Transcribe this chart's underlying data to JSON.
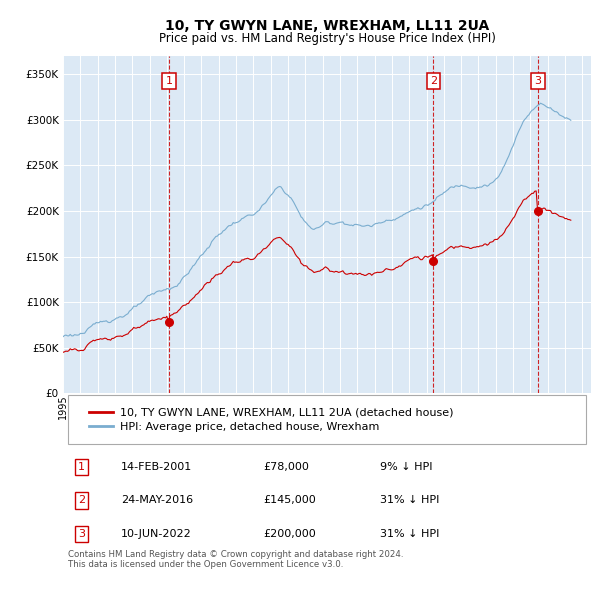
{
  "title": "10, TY GWYN LANE, WREXHAM, LL11 2UA",
  "subtitle": "Price paid vs. HM Land Registry's House Price Index (HPI)",
  "xlim_start": 1995.0,
  "xlim_end": 2025.5,
  "ylim": [
    0,
    370000
  ],
  "yticks": [
    0,
    50000,
    100000,
    150000,
    200000,
    250000,
    300000,
    350000
  ],
  "ytick_labels": [
    "£0",
    "£50K",
    "£100K",
    "£150K",
    "£200K",
    "£250K",
    "£300K",
    "£350K"
  ],
  "plot_bg_color": "#dce9f5",
  "grid_color": "#ffffff",
  "sale_color": "#cc0000",
  "hpi_color": "#7aadcf",
  "purchases": [
    {
      "date_num": 2001.12,
      "price": 78000,
      "label": "1"
    },
    {
      "date_num": 2016.4,
      "price": 145000,
      "label": "2"
    },
    {
      "date_num": 2022.44,
      "price": 200000,
      "label": "3"
    }
  ],
  "legend_sale_label": "10, TY GWYN LANE, WREXHAM, LL11 2UA (detached house)",
  "legend_hpi_label": "HPI: Average price, detached house, Wrexham",
  "table_rows": [
    {
      "num": "1",
      "date": "14-FEB-2001",
      "price": "£78,000",
      "hpi": "9% ↓ HPI"
    },
    {
      "num": "2",
      "date": "24-MAY-2016",
      "price": "£145,000",
      "hpi": "31% ↓ HPI"
    },
    {
      "num": "3",
      "date": "10-JUN-2022",
      "price": "£200,000",
      "hpi": "31% ↓ HPI"
    }
  ],
  "footer": "Contains HM Land Registry data © Crown copyright and database right 2024.\nThis data is licensed under the Open Government Licence v3.0."
}
